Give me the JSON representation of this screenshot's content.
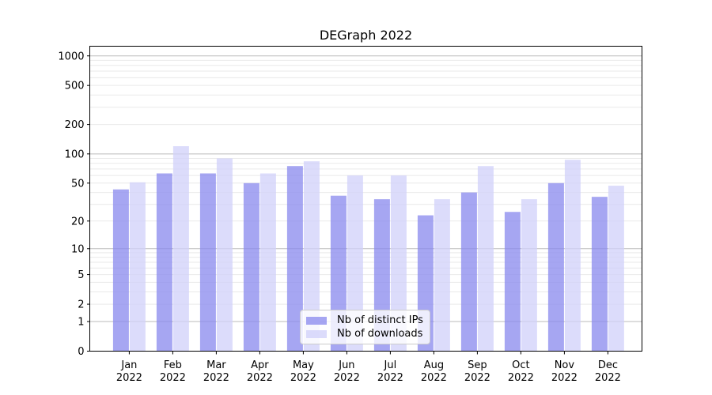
{
  "chart_data": {
    "type": "bar",
    "title": "DEGraph 2022",
    "x_year": "2022",
    "categories": [
      "Jan",
      "Feb",
      "Mar",
      "Apr",
      "May",
      "Jun",
      "Jul",
      "Aug",
      "Sep",
      "Oct",
      "Nov",
      "Dec"
    ],
    "series": [
      {
        "name": "Nb of distinct IPs",
        "fill": "rgba(136,136,238,0.75)",
        "values": [
          43,
          63,
          63,
          50,
          75,
          37,
          34,
          23,
          40,
          25,
          50,
          36
        ]
      },
      {
        "name": "Nb of downloads",
        "fill": "rgba(208,208,250,0.75)",
        "values": [
          51,
          120,
          90,
          63,
          84,
          60,
          60,
          34,
          75,
          34,
          87,
          47
        ]
      }
    ],
    "yscale": "log1p",
    "ylim": [
      0,
      1300
    ],
    "yticks": [
      1000,
      500,
      200,
      100,
      50,
      20,
      10,
      5,
      2,
      1,
      0
    ],
    "major_gridlines": [
      1,
      10,
      100,
      1000
    ],
    "minor_gridline_decades": [
      1,
      10,
      100
    ],
    "grid": true,
    "legend_position": "bottom-center",
    "colors": {
      "axis": "#000000",
      "grid_major": "#bbbbbb",
      "grid_minor": "#e9e9e9",
      "background": "#ffffff"
    }
  }
}
